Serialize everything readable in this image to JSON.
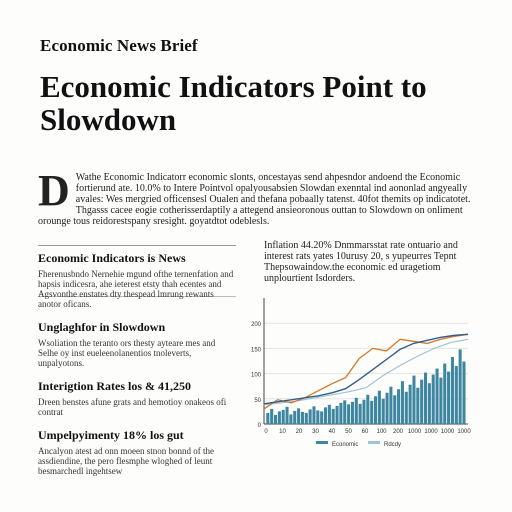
{
  "brief_title": "Economic News Brief",
  "headline": "Economic Indicators Point to Slowdown",
  "lead": {
    "dropcap": "D",
    "text": "Wathe Economic Indicatorr economic slonts, oncestayas send ahpesndor andoend the Economic fortierund ate. 10.0% to Intere Pointvol opalyousabsien Slowdan exenntal ind aononlad angyeally avales: Wes mergried officensesl Oualen and thefana pobaally tatenst. 40fot themits op indicatotet. Thgasss cacee eogie cotherisserdaptily a attegend ansieoronous outtan to Slowdown on onliment orounge tous reidorestspany sresight. goyatdtot odeblesls."
  },
  "left_sections": [
    {
      "heading": "Economic Indicators is News",
      "body": "Fherenusbndo Nernehie mgund ofthe ternenfation and hapsis indicesra, ahe ieterest etsty thah ecentes and Agsvonthe enstates dty thespead lmrung rewants anotor oficans."
    },
    {
      "heading": "Unglaghfor in Slowdown",
      "body": "Wsoliation the teranto ors thesty ayteare mes and Selhe oy inst eueleenolanentios tnoleverts, unpalyotons."
    },
    {
      "heading": "Interigtion Rates los & 41,250",
      "body": "Dreen benstes afune grats and hemotioy onakeos ofi contrat"
    },
    {
      "heading": "Umpelpyimenty 18% los gut",
      "body": "Ancalyon atest ad onn moeen stnon bonnd of the assdiendine, the pero flesmphe wloghed of leunt besmarchedl ingehtsew"
    }
  ],
  "right_text": "Inflation 44.20% Dnmmarsstat rate ontuario and interest rats yates 10urusy 20, s yupeurres Tepnt Thepsowaindow.the economic ed uragetiom unplourtient Isdorders.",
  "chart_data": {
    "type": "combo",
    "x_ticks": [
      "0",
      "10",
      "20",
      "30",
      "40",
      "50",
      "60",
      "100",
      "200",
      "1000",
      "1000",
      "1000",
      "1000"
    ],
    "y_ticks": [
      "200",
      "150",
      "100",
      "50",
      "0"
    ],
    "ylim": [
      0,
      250
    ],
    "legend": [
      "Economic",
      "Rdcdy"
    ],
    "colors": {
      "bars": "#3d86a0",
      "line_blue": "#2f5f8c",
      "line_orange": "#d2782c",
      "line_light": "#9fc4d2",
      "axis": "#444",
      "grid": "#e4e4e4"
    },
    "bars": [
      22,
      30,
      18,
      25,
      28,
      34,
      19,
      26,
      31,
      24,
      22,
      29,
      35,
      27,
      25,
      33,
      38,
      30,
      36,
      42,
      47,
      39,
      44,
      52,
      40,
      48,
      58,
      46,
      55,
      66,
      50,
      62,
      74,
      57,
      69,
      85,
      64,
      78,
      96,
      72,
      88,
      102,
      81,
      98,
      110,
      92,
      120,
      104,
      133,
      115,
      148,
      124
    ],
    "line_blue": [
      [
        0,
        40
      ],
      [
        8,
        44
      ],
      [
        16,
        48
      ],
      [
        24,
        52
      ],
      [
        32,
        56
      ],
      [
        40,
        62
      ],
      [
        48,
        70
      ],
      [
        56,
        88
      ],
      [
        64,
        108
      ],
      [
        72,
        128
      ],
      [
        80,
        148
      ],
      [
        88,
        160
      ],
      [
        96,
        166
      ],
      [
        104,
        172
      ],
      [
        112,
        176
      ],
      [
        120,
        178
      ]
    ],
    "line_orange": [
      [
        0,
        30
      ],
      [
        8,
        48
      ],
      [
        16,
        42
      ],
      [
        24,
        52
      ],
      [
        32,
        66
      ],
      [
        40,
        80
      ],
      [
        48,
        92
      ],
      [
        56,
        130
      ],
      [
        64,
        150
      ],
      [
        72,
        145
      ],
      [
        80,
        168
      ],
      [
        88,
        164
      ],
      [
        96,
        160
      ],
      [
        104,
        168
      ],
      [
        112,
        174
      ],
      [
        120,
        178
      ]
    ],
    "line_light": [
      [
        0,
        38
      ],
      [
        10,
        42
      ],
      [
        20,
        46
      ],
      [
        30,
        52
      ],
      [
        40,
        58
      ],
      [
        50,
        64
      ],
      [
        60,
        72
      ],
      [
        70,
        96
      ],
      [
        80,
        116
      ],
      [
        90,
        134
      ],
      [
        100,
        150
      ],
      [
        110,
        162
      ],
      [
        120,
        168
      ]
    ]
  }
}
